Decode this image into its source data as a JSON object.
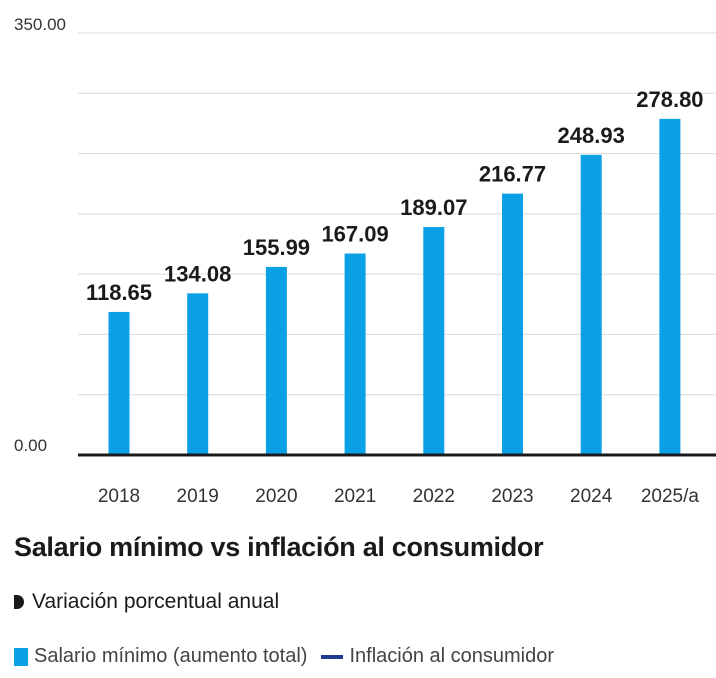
{
  "chart_data": {
    "type": "bar",
    "categories": [
      "2018",
      "2019",
      "2020",
      "2021",
      "2022",
      "2023",
      "2024",
      "2025/a"
    ],
    "values": [
      118.65,
      134.08,
      155.99,
      167.09,
      189.07,
      216.77,
      248.93,
      278.8
    ],
    "value_labels": [
      "118.65",
      "134.08",
      "155.99",
      "167.09",
      "189.07",
      "216.77",
      "248.93",
      "278.80"
    ],
    "ylim": [
      0,
      350
    ],
    "ytick_labels": [
      "0.00",
      "350.00"
    ],
    "gridlines": 7,
    "bar_color": "#0aa0e6",
    "axis_color": "#1a1a1a",
    "grid_color": "#d9d9d9"
  },
  "section": {
    "title": "Salario mínimo vs inflación al consumidor",
    "subtitle": "Variación porcentual anual"
  },
  "legend": [
    {
      "label": "Salario mínimo (aumento total)",
      "color": "#0aa0e6",
      "shape": "box"
    },
    {
      "label": "Inflación al consumidor",
      "color": "#1f3a93",
      "shape": "line"
    }
  ]
}
